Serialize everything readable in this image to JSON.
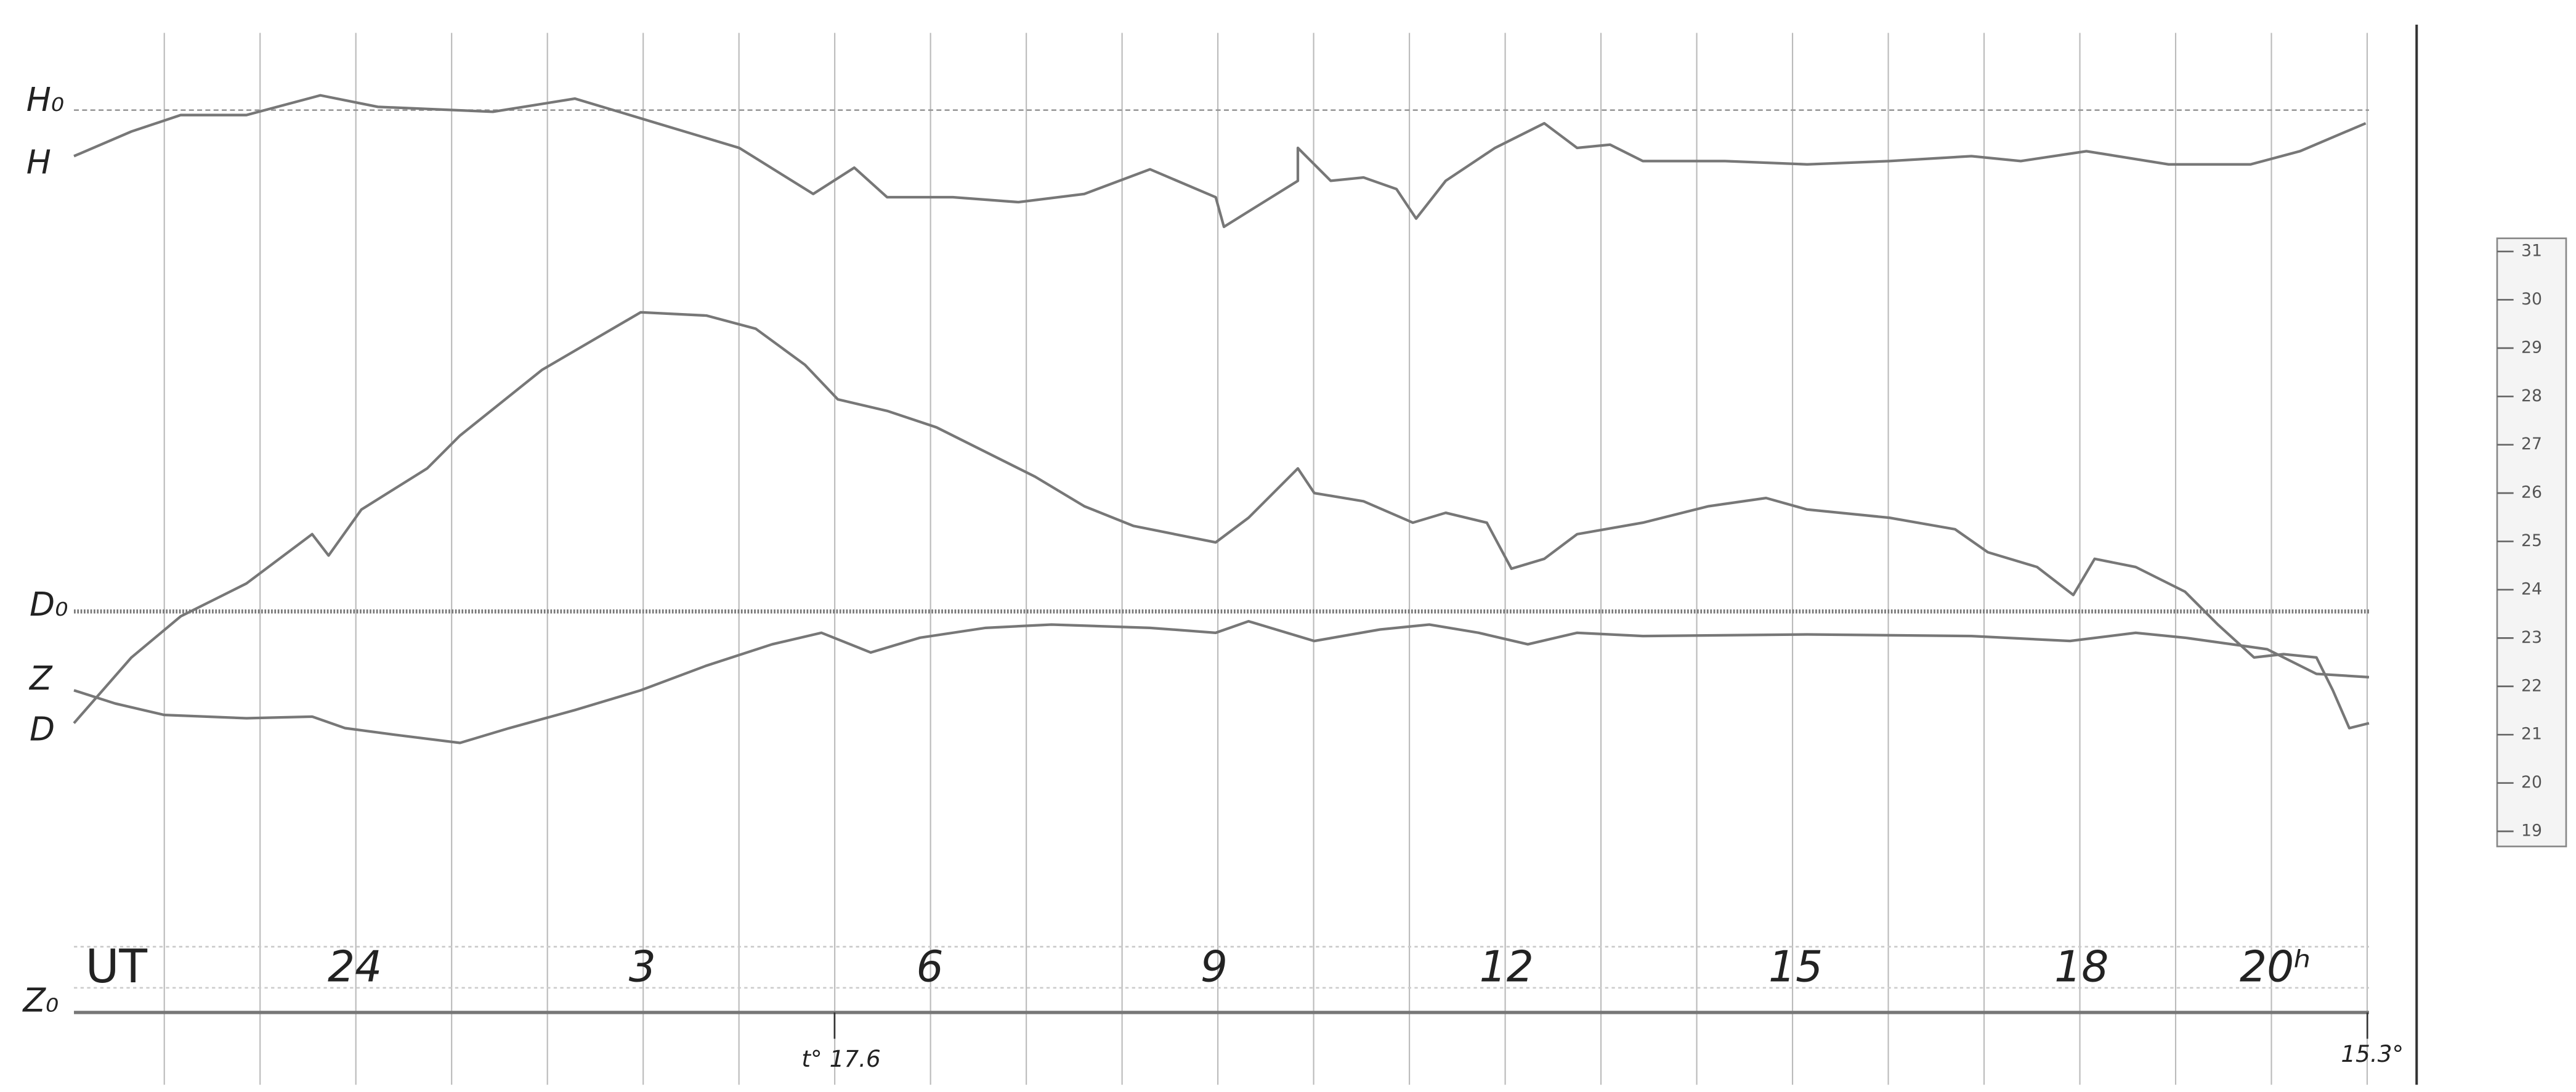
{
  "labels": {
    "h0": "H₀",
    "h": "H",
    "d0": "D₀",
    "z": "Z",
    "d": "D",
    "z0": "Z₀"
  },
  "time_axis": {
    "unit": "UT",
    "hours": [
      "24",
      "3",
      "6",
      "9",
      "12",
      "15",
      "18",
      "20ʰ"
    ]
  },
  "temperatures": {
    "start": "t° 17.6",
    "end": "15.3°"
  },
  "scale": [
    "31",
    "30",
    "29",
    "28",
    "27",
    "26",
    "25",
    "24",
    "23",
    "22",
    "21",
    "20",
    "19"
  ]
}
